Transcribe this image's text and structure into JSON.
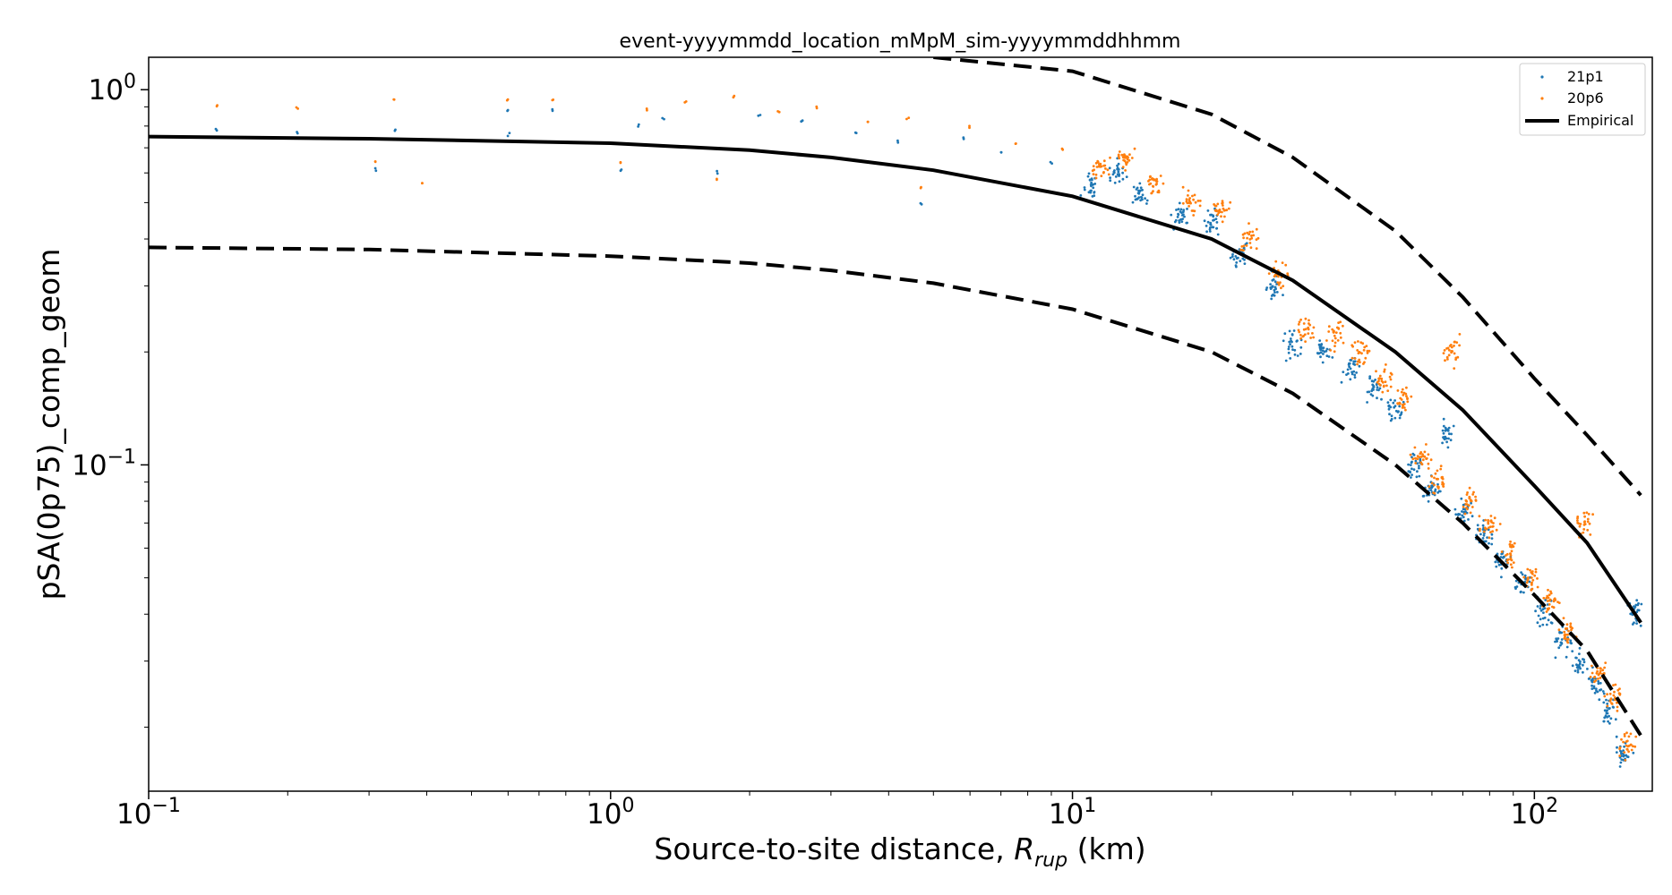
{
  "chart_data": {
    "type": "scatter",
    "title": "event-yyyymmdd_location_mMpM_sim-yyyymmddhhmm",
    "xlabel": "Source-to-site distance, R_rup (km)",
    "xlabel_main": "Source-to-site distance, ",
    "xlabel_var": "R",
    "xlabel_sub": "rup",
    "xlabel_unit": " (km)",
    "ylabel": "pSA(0p75)_comp_geom",
    "xscale": "log",
    "yscale": "log",
    "xlim": [
      0.1,
      180
    ],
    "ylim": [
      0.0135,
      1.22
    ],
    "grid": false,
    "legend_position": "top-right",
    "x_ticks": [
      {
        "value": 0.1,
        "base": "10",
        "exp": "−1"
      },
      {
        "value": 1,
        "base": "10",
        "exp": "0"
      },
      {
        "value": 10,
        "base": "10",
        "exp": "1"
      },
      {
        "value": 100,
        "base": "10",
        "exp": "2"
      }
    ],
    "y_ticks": [
      {
        "value": 1,
        "base": "10",
        "exp": "0"
      },
      {
        "value": 0.1,
        "base": "10",
        "exp": "−1"
      }
    ],
    "series": [
      {
        "name": "21p1",
        "kind": "scatter",
        "color": "#1f77b4",
        "clusters": [
          {
            "x": 0.14,
            "y": 0.78
          },
          {
            "x": 0.21,
            "y": 0.77
          },
          {
            "x": 0.31,
            "y": 0.61
          },
          {
            "x": 0.34,
            "y": 0.78
          },
          {
            "x": 0.6,
            "y": 0.76
          },
          {
            "x": 0.6,
            "y": 0.88
          },
          {
            "x": 0.75,
            "y": 0.88
          },
          {
            "x": 1.05,
            "y": 0.61
          },
          {
            "x": 1.15,
            "y": 0.8
          },
          {
            "x": 1.3,
            "y": 0.84
          },
          {
            "x": 1.7,
            "y": 0.6
          },
          {
            "x": 2.1,
            "y": 0.86
          },
          {
            "x": 2.6,
            "y": 0.83
          },
          {
            "x": 3.4,
            "y": 0.77
          },
          {
            "x": 4.2,
            "y": 0.73
          },
          {
            "x": 4.7,
            "y": 0.5
          },
          {
            "x": 5.8,
            "y": 0.74
          },
          {
            "x": 7,
            "y": 0.68
          },
          {
            "x": 9,
            "y": 0.64
          },
          {
            "x": 11,
            "y": 0.55
          },
          {
            "x": 12.5,
            "y": 0.6
          },
          {
            "x": 14,
            "y": 0.52
          },
          {
            "x": 17,
            "y": 0.46
          },
          {
            "x": 20,
            "y": 0.44
          },
          {
            "x": 23,
            "y": 0.36
          },
          {
            "x": 27,
            "y": 0.3
          },
          {
            "x": 30,
            "y": 0.21
          },
          {
            "x": 35,
            "y": 0.2
          },
          {
            "x": 40,
            "y": 0.18
          },
          {
            "x": 45,
            "y": 0.16
          },
          {
            "x": 50,
            "y": 0.14
          },
          {
            "x": 55,
            "y": 0.1
          },
          {
            "x": 60,
            "y": 0.085
          },
          {
            "x": 65,
            "y": 0.12
          },
          {
            "x": 70,
            "y": 0.075
          },
          {
            "x": 78,
            "y": 0.065
          },
          {
            "x": 85,
            "y": 0.055
          },
          {
            "x": 95,
            "y": 0.048
          },
          {
            "x": 105,
            "y": 0.04
          },
          {
            "x": 115,
            "y": 0.034
          },
          {
            "x": 125,
            "y": 0.03
          },
          {
            "x": 135,
            "y": 0.026
          },
          {
            "x": 145,
            "y": 0.022
          },
          {
            "x": 155,
            "y": 0.017
          },
          {
            "x": 165,
            "y": 0.04
          }
        ]
      },
      {
        "name": "20p6",
        "kind": "scatter",
        "color": "#ff7f0e",
        "clusters": [
          {
            "x": 0.14,
            "y": 0.9
          },
          {
            "x": 0.21,
            "y": 0.9
          },
          {
            "x": 0.31,
            "y": 0.64
          },
          {
            "x": 0.34,
            "y": 0.94
          },
          {
            "x": 0.39,
            "y": 0.56
          },
          {
            "x": 0.6,
            "y": 0.94
          },
          {
            "x": 0.75,
            "y": 0.94
          },
          {
            "x": 1.05,
            "y": 0.64
          },
          {
            "x": 1.2,
            "y": 0.88
          },
          {
            "x": 1.45,
            "y": 0.93
          },
          {
            "x": 1.7,
            "y": 0.58
          },
          {
            "x": 1.85,
            "y": 0.96
          },
          {
            "x": 2.3,
            "y": 0.88
          },
          {
            "x": 2.8,
            "y": 0.9
          },
          {
            "x": 3.6,
            "y": 0.82
          },
          {
            "x": 4.4,
            "y": 0.84
          },
          {
            "x": 4.7,
            "y": 0.55
          },
          {
            "x": 6,
            "y": 0.8
          },
          {
            "x": 7.5,
            "y": 0.72
          },
          {
            "x": 9.5,
            "y": 0.7
          },
          {
            "x": 11.5,
            "y": 0.62
          },
          {
            "x": 13,
            "y": 0.66
          },
          {
            "x": 15,
            "y": 0.56
          },
          {
            "x": 18,
            "y": 0.5
          },
          {
            "x": 21,
            "y": 0.48
          },
          {
            "x": 24,
            "y": 0.4
          },
          {
            "x": 28,
            "y": 0.32
          },
          {
            "x": 32,
            "y": 0.23
          },
          {
            "x": 37,
            "y": 0.22
          },
          {
            "x": 42,
            "y": 0.2
          },
          {
            "x": 47,
            "y": 0.17
          },
          {
            "x": 52,
            "y": 0.15
          },
          {
            "x": 57,
            "y": 0.105
          },
          {
            "x": 62,
            "y": 0.09
          },
          {
            "x": 66,
            "y": 0.2
          },
          {
            "x": 72,
            "y": 0.08
          },
          {
            "x": 80,
            "y": 0.07
          },
          {
            "x": 88,
            "y": 0.058
          },
          {
            "x": 98,
            "y": 0.05
          },
          {
            "x": 108,
            "y": 0.043
          },
          {
            "x": 118,
            "y": 0.036
          },
          {
            "x": 128,
            "y": 0.07
          },
          {
            "x": 138,
            "y": 0.028
          },
          {
            "x": 148,
            "y": 0.024
          },
          {
            "x": 160,
            "y": 0.018
          }
        ]
      },
      {
        "name": "Empirical",
        "kind": "line",
        "color": "#000000",
        "x": [
          0.1,
          0.3,
          1,
          2,
          3,
          5,
          10,
          20,
          30,
          50,
          70,
          100,
          130,
          170
        ],
        "y": [
          0.75,
          0.74,
          0.72,
          0.69,
          0.66,
          0.61,
          0.52,
          0.4,
          0.31,
          0.2,
          0.14,
          0.088,
          0.062,
          0.038
        ]
      },
      {
        "name": "",
        "kind": "dashed",
        "color": "#000000",
        "x": [
          5,
          10,
          20,
          30,
          50,
          70,
          100,
          130,
          170
        ],
        "y": [
          1.22,
          1.12,
          0.86,
          0.66,
          0.42,
          0.28,
          0.17,
          0.12,
          0.083
        ]
      },
      {
        "name": "",
        "kind": "dashed",
        "color": "#000000",
        "x": [
          0.1,
          0.3,
          1,
          2,
          3,
          5,
          10,
          20,
          30,
          50,
          70,
          100,
          130,
          170
        ],
        "y": [
          0.38,
          0.375,
          0.36,
          0.345,
          0.33,
          0.305,
          0.26,
          0.2,
          0.155,
          0.1,
          0.07,
          0.045,
          0.032,
          0.019
        ]
      }
    ]
  }
}
